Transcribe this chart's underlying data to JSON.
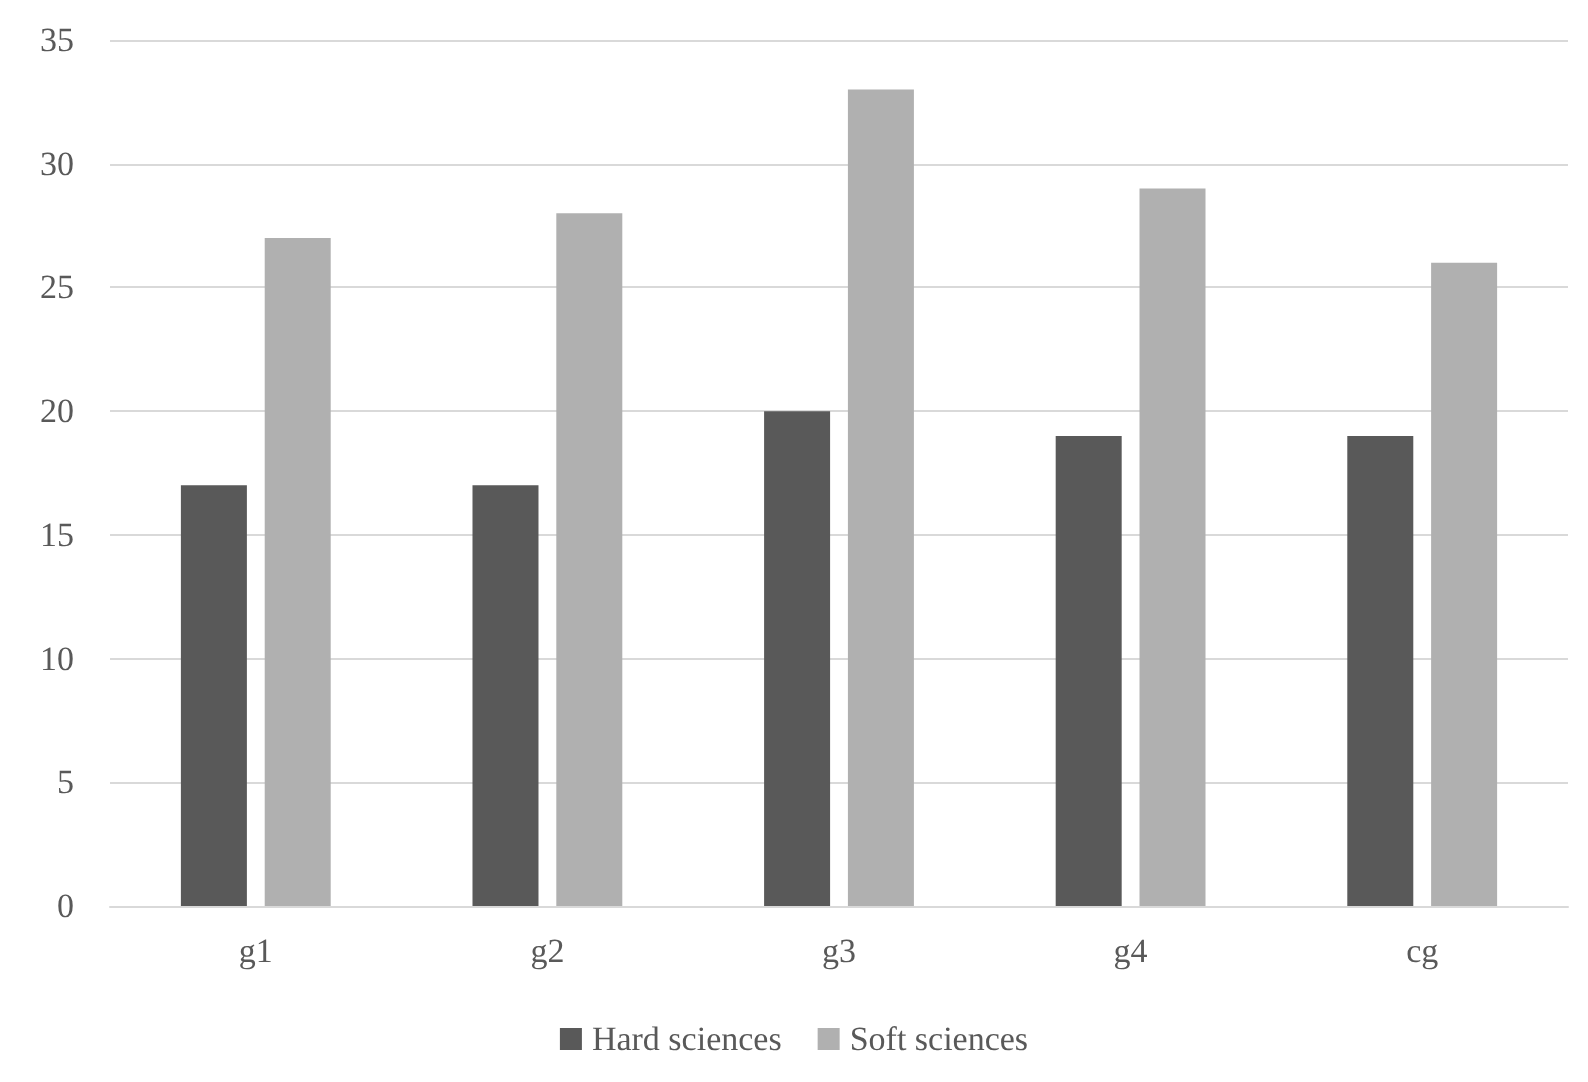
{
  "chart_data": {
    "type": "bar",
    "categories": [
      "g1",
      "g2",
      "g3",
      "g4",
      "cg"
    ],
    "series": [
      {
        "name": "Hard sciences",
        "color": "#595959",
        "values": [
          17,
          17,
          20,
          19,
          19
        ]
      },
      {
        "name": "Soft sciences",
        "color": "#b0b0b0",
        "values": [
          27,
          28,
          33,
          29,
          26
        ]
      }
    ],
    "ylim": [
      0,
      35
    ],
    "yticks": [
      0,
      5,
      10,
      15,
      20,
      25,
      30,
      35
    ],
    "grid": "y",
    "legend": "bottom"
  }
}
